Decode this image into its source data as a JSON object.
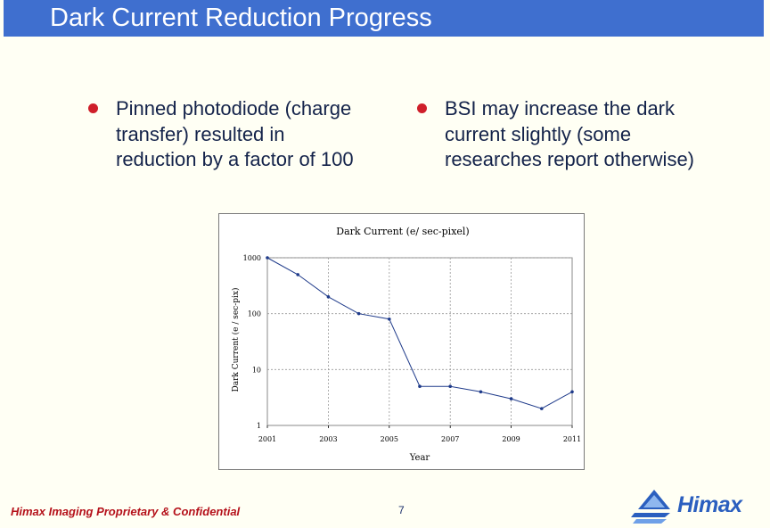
{
  "slide": {
    "title": "Dark Current Reduction Progress",
    "bullets": [
      {
        "text": "Pinned photodiode (charge\ntransfer) resulted in\nreduction by a factor of 100"
      },
      {
        "text": "BSI may increase the dark\ncurrent slightly (some\nresearches report otherwise)"
      }
    ],
    "footer": "Himax Imaging Proprietary & Confidential",
    "page_number": "7",
    "logo_text": "Himax"
  },
  "colors": {
    "title_bar": "#3f6fcf",
    "bullet_dot": "#cf1f2a",
    "footer_text": "#b5121b",
    "series_line": "#1e3a8a"
  },
  "chart_data": {
    "type": "line",
    "title": "Dark Current (e/ sec-pixel)",
    "xlabel": "Year",
    "ylabel": "Dark Current (e / sec-pix)",
    "y_scale": "log",
    "ylim": [
      1,
      1000
    ],
    "xlim": [
      2001,
      2011
    ],
    "x_ticks": [
      "2001",
      "2003",
      "2005",
      "2007",
      "2009",
      "2011"
    ],
    "x_tick_values": [
      2001,
      2003,
      2005,
      2007,
      2009,
      2011
    ],
    "y_ticks": [
      "1",
      "10",
      "100",
      "1000"
    ],
    "y_tick_values": [
      1,
      10,
      100,
      1000
    ],
    "grid": true,
    "series": [
      {
        "x": [
          2001,
          2002,
          2003,
          2004,
          2005,
          2006,
          2007,
          2008,
          2009,
          2010,
          2011
        ],
        "values": [
          1000,
          500,
          200,
          100,
          80,
          5,
          5,
          4,
          3,
          2,
          4
        ]
      }
    ]
  }
}
